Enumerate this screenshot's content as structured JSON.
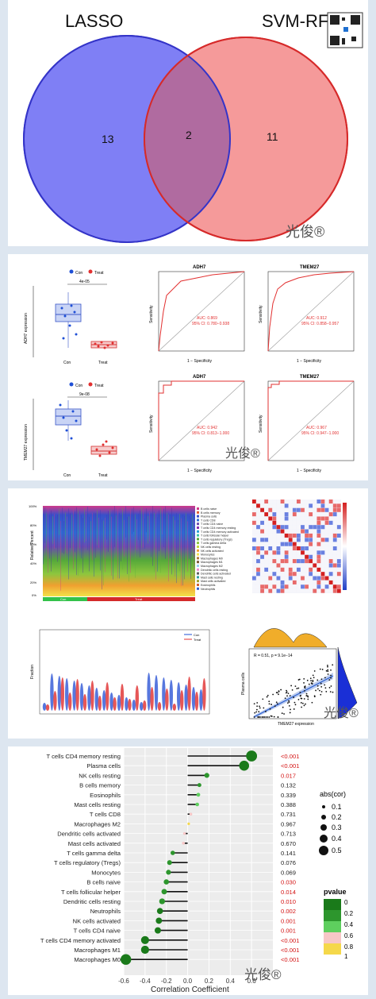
{
  "venn": {
    "left_label": "LASSO",
    "right_label": "SVM-RFE",
    "left_only": "13",
    "overlap": "2",
    "right_only": "11",
    "signature": "光俊®",
    "colors": {
      "left": "#7f7ff5",
      "right": "#f59a9a",
      "overlap": "#b06ba0"
    }
  },
  "roc_panel": {
    "box1": {
      "ylabel": "ADH7 expression",
      "pvalue": "4e-05",
      "legend": [
        "Con",
        "Treat"
      ],
      "xlabels": [
        "Con",
        "Treat"
      ]
    },
    "box2": {
      "ylabel": "TMEM27 expression",
      "pvalue": "9e-08",
      "legend": [
        "Con",
        "Treat"
      ],
      "xlabels": [
        "Con",
        "Treat"
      ]
    },
    "roc1": {
      "title": "ADH7",
      "auc": "AUC: 0.869",
      "ci": "95% CI: 0.780−0.938"
    },
    "roc2": {
      "title": "TMEM27",
      "auc": "AUC: 0.912",
      "ci": "95% CI: 0.858−0.957"
    },
    "roc3": {
      "title": "ADH7",
      "auc": "AUC: 0.942",
      "ci": "95% CI: 0.813−1.000"
    },
    "roc4": {
      "title": "TMEM27",
      "auc": "AUC: 0.967",
      "ci": "95% CI: 0.947−1.000"
    },
    "xlabel": "1 − Specificity",
    "ylabel": "Sensitivity",
    "signature": "光俊®"
  },
  "immune_panel": {
    "stack_ylabel": "Relative Percent",
    "stack_ticks": [
      "100%",
      "80%",
      "60%",
      "40%",
      "20%",
      "0%"
    ],
    "group_labels": [
      "Con",
      "Treat"
    ],
    "legend_items": [
      "B cells naive",
      "B cells memory",
      "Plasma cells",
      "T cells CD8",
      "T cells CD4 naive",
      "T cells CD4 memory resting",
      "T cells CD4 memory activated",
      "T cells follicular helper",
      "T cells regulatory (Tregs)",
      "T cells gamma delta",
      "NK cells resting",
      "NK cells activated",
      "Monocytes",
      "Macrophages M0",
      "Macrophages M1",
      "Macrophages M2",
      "Dendritic cells resting",
      "Dendritic cells activated",
      "Mast cells resting",
      "Mast cells activated",
      "Eosinophils",
      "Neutrophils"
    ],
    "violin_ylabel": "Fraction",
    "violin_legend": [
      "Con",
      "Treat"
    ],
    "scatter_stats": "R = 0.51, p = 9.1e−14",
    "scatter_ylabel": "Plasma cells",
    "scatter_xlabel": "TMEM27 expression",
    "signature": "光俊®"
  },
  "lollipop": {
    "xlabel": "Correlation Coefficient",
    "signature": "光俊®",
    "size_legend_title": "abs(cor)",
    "size_legend_items": [
      "0.1",
      "0.2",
      "0.3",
      "0.4",
      "0.5"
    ],
    "color_legend_title": "pvalue",
    "color_legend_items": [
      "0",
      "0.2",
      "0.4",
      "0.6",
      "0.8",
      "1"
    ]
  },
  "chart_data": {
    "type": "scatter",
    "xlabel": "Correlation Coefficient",
    "xlim": [
      -0.6,
      0.8
    ],
    "xticks": [
      "-0.6",
      "-0.4",
      "-0.2",
      "0.0",
      "0.2",
      "0.4",
      "0.6"
    ],
    "xtick_values": [
      -0.6,
      -0.4,
      -0.2,
      0.0,
      0.2,
      0.4,
      0.6
    ],
    "rows": [
      {
        "label": "T cells CD4 memory resting",
        "cor": 0.6,
        "p": "<0.001",
        "sig": true,
        "color": "#1a7a1a"
      },
      {
        "label": "Plasma cells",
        "cor": 0.53,
        "p": "<0.001",
        "sig": true,
        "color": "#1a7a1a"
      },
      {
        "label": "NK cells resting",
        "cor": 0.18,
        "p": "0.017",
        "sig": true,
        "color": "#2d962d"
      },
      {
        "label": "B cells memory",
        "cor": 0.11,
        "p": "0.132",
        "sig": false,
        "color": "#2d962d"
      },
      {
        "label": "Eosinophils",
        "cor": 0.1,
        "p": "0.339",
        "sig": false,
        "color": "#5ecf5e"
      },
      {
        "label": "Mast cells resting",
        "cor": 0.09,
        "p": "0.388",
        "sig": false,
        "color": "#5ecf5e"
      },
      {
        "label": "T cells CD8",
        "cor": 0.03,
        "p": "0.731",
        "sig": false,
        "color": "#f7c7c7"
      },
      {
        "label": "Macrophages M2",
        "cor": 0.01,
        "p": "0.967",
        "sig": false,
        "color": "#f5d84a"
      },
      {
        "label": "Dendritic cells activated",
        "cor": -0.03,
        "p": "0.713",
        "sig": false,
        "color": "#f7c7c7"
      },
      {
        "label": "Mast cells activated",
        "cor": -0.04,
        "p": "0.670",
        "sig": false,
        "color": "#f7c7c7"
      },
      {
        "label": "T cells gamma delta",
        "cor": -0.14,
        "p": "0.141",
        "sig": false,
        "color": "#2d962d"
      },
      {
        "label": "T cells regulatory (Tregs)",
        "cor": -0.17,
        "p": "0.076",
        "sig": false,
        "color": "#2d962d"
      },
      {
        "label": "Monocytes",
        "cor": -0.18,
        "p": "0.069",
        "sig": false,
        "color": "#2d962d"
      },
      {
        "label": "B cells naive",
        "cor": -0.2,
        "p": "0.030",
        "sig": true,
        "color": "#2d962d"
      },
      {
        "label": "T cells follicular helper",
        "cor": -0.22,
        "p": "0.014",
        "sig": true,
        "color": "#2d962d"
      },
      {
        "label": "Dendritic cells resting",
        "cor": -0.24,
        "p": "0.010",
        "sig": true,
        "color": "#2d962d"
      },
      {
        "label": "Neutrophils",
        "cor": -0.26,
        "p": "0.002",
        "sig": true,
        "color": "#1a7a1a"
      },
      {
        "label": "NK cells activated",
        "cor": -0.27,
        "p": "0.001",
        "sig": true,
        "color": "#1a7a1a"
      },
      {
        "label": "T cells CD4 naive",
        "cor": -0.28,
        "p": "0.001",
        "sig": true,
        "color": "#1a7a1a"
      },
      {
        "label": "T cells CD4 memory activated",
        "cor": -0.4,
        "p": "<0.001",
        "sig": true,
        "color": "#1a7a1a"
      },
      {
        "label": "Macrophages M1",
        "cor": -0.4,
        "p": "<0.001",
        "sig": true,
        "color": "#1a7a1a"
      },
      {
        "label": "Macrophages M0",
        "cor": -0.58,
        "p": "<0.001",
        "sig": true,
        "color": "#1a7a1a"
      }
    ]
  }
}
